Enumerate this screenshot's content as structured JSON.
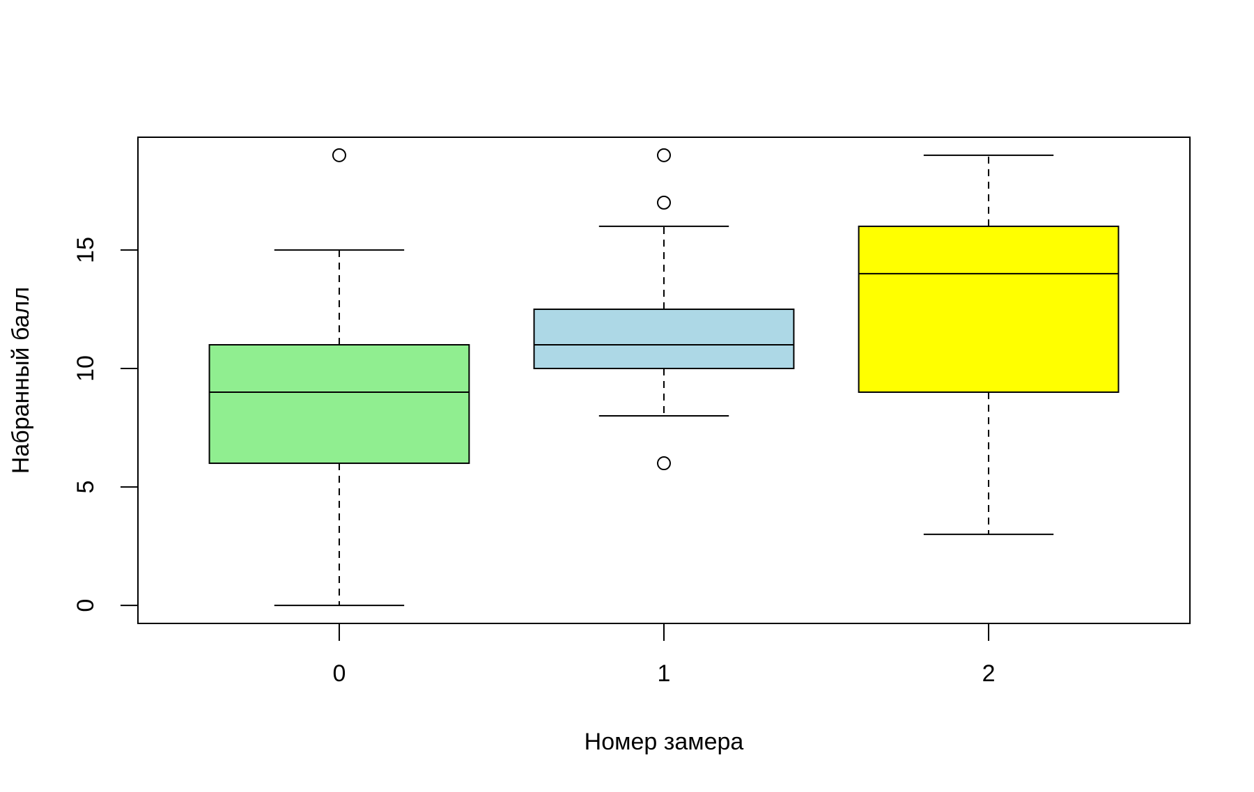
{
  "chart_data": {
    "type": "boxplot",
    "x_label": "Номер замера",
    "y_label": "Набранный балл",
    "categories": [
      "0",
      "1",
      "2"
    ],
    "boxes": [
      {
        "min": 0,
        "q1": 6,
        "median": 9,
        "q3": 11,
        "max": 15,
        "outliers": [
          19
        ],
        "color": "#90ee90"
      },
      {
        "min": 8,
        "q1": 10,
        "median": 11,
        "q3": 12.5,
        "max": 16,
        "outliers": [
          19,
          17,
          6
        ],
        "color": "#add8e6"
      },
      {
        "min": 3,
        "q1": 9,
        "median": 14,
        "q3": 16,
        "max": 19,
        "outliers": [],
        "color": "#ffff00"
      }
    ],
    "ylim": [
      -0.76,
      19.76
    ],
    "yticks": [
      0,
      5,
      10,
      15
    ]
  }
}
